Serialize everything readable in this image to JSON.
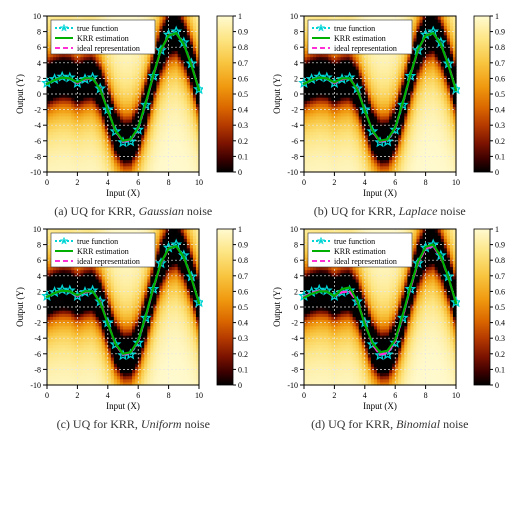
{
  "figure": {
    "panels": [
      {
        "id": "a",
        "caption_prefix": "(a) UQ for KRR, ",
        "noise": "Gaussian",
        "caption_suffix": " noise"
      },
      {
        "id": "b",
        "caption_prefix": "(b) UQ for KRR, ",
        "noise": "Laplace",
        "caption_suffix": " noise"
      },
      {
        "id": "c",
        "caption_prefix": "(c) UQ for KRR, ",
        "noise": "Uniform",
        "caption_suffix": " noise"
      },
      {
        "id": "d",
        "caption_prefix": "(d) UQ for KRR, ",
        "noise": "Binomial",
        "caption_suffix": " noise"
      }
    ],
    "legend": {
      "items": [
        {
          "label": "true function",
          "color": "#00d5d5",
          "style": "dot",
          "marker": "star"
        },
        {
          "label": "KRR estimation",
          "color": "#00b000",
          "style": "solid",
          "marker": "none"
        },
        {
          "label": "ideal representation",
          "color": "#ff2fd6",
          "style": "dash",
          "marker": "none"
        }
      ],
      "box": {
        "fill": "#ffffff",
        "stroke": "#333333",
        "fontsize": 8
      }
    },
    "axes": {
      "xlabel": "Input (X)",
      "ylabel": "Output (Y)",
      "xlim": [
        0,
        10
      ],
      "ylim": [
        -10,
        10
      ],
      "xticks": [
        0,
        2,
        4,
        6,
        8,
        10
      ],
      "yticks": [
        -10,
        -8,
        -6,
        -4,
        -2,
        0,
        2,
        4,
        6,
        8,
        10
      ],
      "label_fontsize": 9,
      "tick_fontsize": 8,
      "grid_color": "#e8e8e8",
      "grid_dash": "2,2"
    },
    "colorbar": {
      "min": 0,
      "max": 1,
      "ticks": [
        0,
        0.1,
        0.2,
        0.3,
        0.4,
        0.5,
        0.6,
        0.7,
        0.8,
        0.9,
        1
      ],
      "stops": [
        {
          "t": 0.0,
          "c": "#000000"
        },
        {
          "t": 0.08,
          "c": "#3a0000"
        },
        {
          "t": 0.18,
          "c": "#7a1200"
        },
        {
          "t": 0.3,
          "c": "#b53a00"
        },
        {
          "t": 0.42,
          "c": "#dc6a00"
        },
        {
          "t": 0.55,
          "c": "#f09a10"
        },
        {
          "t": 0.7,
          "c": "#f8c540"
        },
        {
          "t": 0.85,
          "c": "#fde583"
        },
        {
          "t": 1.0,
          "c": "#fffad0"
        }
      ],
      "tick_fontsize": 8
    },
    "curves": {
      "x": [
        0,
        0.5,
        1,
        1.5,
        2,
        2.5,
        3,
        3.5,
        4,
        4.5,
        5,
        5.5,
        6,
        6.5,
        7,
        7.5,
        8,
        8.5,
        9,
        9.5,
        10
      ],
      "true": [
        1.4,
        1.9,
        2.2,
        2.1,
        1.4,
        1.9,
        2.1,
        0.7,
        -2.0,
        -4.8,
        -6.2,
        -6.1,
        -4.6,
        -1.4,
        2.3,
        5.6,
        7.6,
        8.0,
        6.6,
        3.9,
        0.6
      ],
      "krr": [
        1.3,
        1.8,
        2.1,
        2.0,
        1.5,
        2.0,
        2.0,
        0.6,
        -2.1,
        -4.7,
        -6.0,
        -5.8,
        -4.3,
        -1.1,
        2.5,
        5.7,
        7.5,
        7.8,
        6.4,
        3.7,
        0.5
      ],
      "ideal": [
        1.3,
        1.8,
        2.1,
        2.0,
        1.4,
        1.9,
        2.0,
        0.7,
        -2.0,
        -4.8,
        -6.1,
        -5.9,
        -4.4,
        -1.2,
        2.4,
        5.6,
        7.5,
        7.8,
        6.4,
        3.8,
        0.5
      ],
      "krr_b": [
        1.2,
        1.7,
        2.0,
        2.0,
        1.4,
        2.3,
        2.5,
        0.8,
        -2.2,
        -4.6,
        -5.8,
        -5.6,
        -4.2,
        -1.0,
        2.6,
        5.8,
        7.7,
        8.0,
        6.5,
        3.8,
        0.5
      ],
      "line_width": {
        "true": 1.6,
        "krr": 2.2,
        "ideal": 2.2
      }
    },
    "heat": {
      "sigma_core": 1.7,
      "sigma_mid": 3.3,
      "sigma_wide": 6.0
    },
    "plot_size": {
      "w": 190,
      "h": 190,
      "cb_w": 16,
      "cb_gap": 10
    }
  }
}
